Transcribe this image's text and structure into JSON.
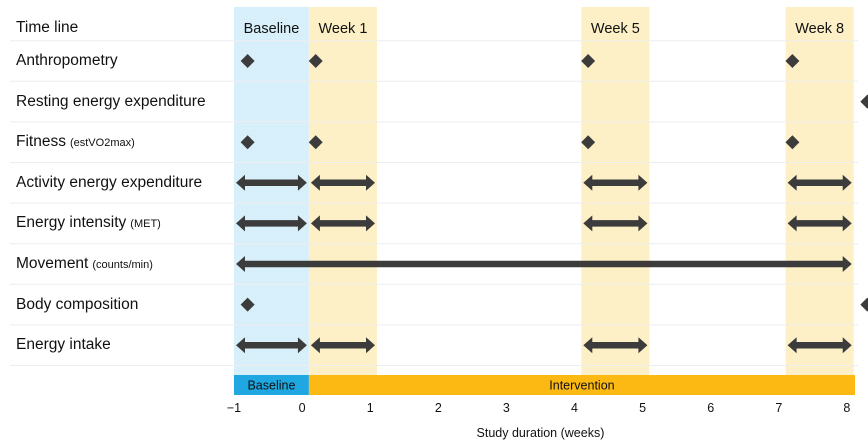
{
  "header": {
    "label": "Time line",
    "phase_labels": [
      "Baseline",
      "Week 1",
      "Week 5",
      "Week 8"
    ]
  },
  "rows": [
    {
      "label": "Anthropometry",
      "sub": "",
      "markers": [
        {
          "kind": "diamond",
          "at": -0.8
        },
        {
          "kind": "diamond",
          "at": 0.2
        },
        {
          "kind": "diamond",
          "at": 4.2
        },
        {
          "kind": "diamond",
          "at": 7.2
        }
      ]
    },
    {
      "label": "Resting energy expenditure",
      "sub": "",
      "markers": [
        {
          "kind": "diamond",
          "at": 8.3
        }
      ]
    },
    {
      "label": "Fitness",
      "sub": "(estVO2max)",
      "markers": [
        {
          "kind": "diamond",
          "at": -0.8
        },
        {
          "kind": "diamond",
          "at": 0.2
        },
        {
          "kind": "diamond",
          "at": 4.2
        },
        {
          "kind": "diamond",
          "at": 7.2
        }
      ]
    },
    {
      "label": "Activity energy expenditure",
      "sub": "",
      "markers": [
        {
          "kind": "arrow",
          "from": -1,
          "to": 0.1
        },
        {
          "kind": "arrow",
          "from": 0.1,
          "to": 1.1
        },
        {
          "kind": "arrow",
          "from": 4.1,
          "to": 5.1
        },
        {
          "kind": "arrow",
          "from": 7.1,
          "to": 8.1
        }
      ]
    },
    {
      "label": "Energy intensity",
      "sub": "(MET)",
      "markers": [
        {
          "kind": "arrow",
          "from": -1,
          "to": 0.1
        },
        {
          "kind": "arrow",
          "from": 0.1,
          "to": 1.1
        },
        {
          "kind": "arrow",
          "from": 4.1,
          "to": 5.1
        },
        {
          "kind": "arrow",
          "from": 7.1,
          "to": 8.1
        }
      ]
    },
    {
      "label": "Movement",
      "sub": "(counts/min)",
      "markers": [
        {
          "kind": "arrow",
          "from": -1,
          "to": 8.1
        }
      ]
    },
    {
      "label": "Body composition",
      "sub": "",
      "markers": [
        {
          "kind": "diamond",
          "at": -0.8
        },
        {
          "kind": "diamond",
          "at": 8.3
        }
      ]
    },
    {
      "label": "Energy intake",
      "sub": "",
      "markers": [
        {
          "kind": "arrow",
          "from": -1,
          "to": 0.1
        },
        {
          "kind": "arrow",
          "from": 0.1,
          "to": 1.1
        },
        {
          "kind": "arrow",
          "from": 4.1,
          "to": 5.1
        },
        {
          "kind": "arrow",
          "from": 7.1,
          "to": 8.1
        }
      ]
    }
  ],
  "phase_bar": {
    "baseline_label": "Baseline",
    "intervention_label": "Intervention"
  },
  "axis": {
    "ticks": [
      "−1",
      "0",
      "1",
      "2",
      "3",
      "4",
      "5",
      "6",
      "7",
      "8"
    ],
    "label": "Study duration (weeks)"
  },
  "colors": {
    "baseline_band": "#d6effa",
    "week_band": "#fdf0c6",
    "baseline_bar": "#1ea7e1",
    "intervention_bar": "#fdb913",
    "marker": "#3c3c3c"
  }
}
